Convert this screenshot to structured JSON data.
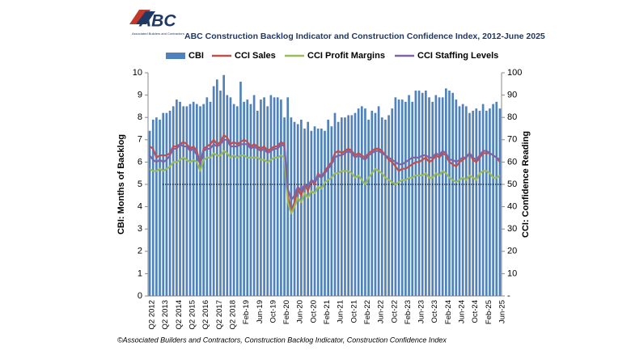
{
  "chart_data": {
    "type": "bar",
    "logo": "ABC",
    "logo_subtitle": "Associated Builders and Contractors",
    "title": "ABC Construction Backlog Indicator and Construction Confidence Index, 2012-June 2025",
    "y_label": "CBI: Months of Backlog",
    "y2_label": "CCI: Confidence Reading",
    "source": "©Associated Builders and Contractors, Construction Backlog Indicator, Construction Confidence Index",
    "categories": [
      "Q2 2012",
      null,
      null,
      null,
      "Q2 2013",
      null,
      null,
      null,
      "Q2 2014",
      null,
      null,
      null,
      "Q2 2015",
      null,
      null,
      null,
      "Q2 2016",
      null,
      null,
      null,
      "Q2 2017",
      null,
      null,
      null,
      "Q2 2018",
      null,
      null,
      null,
      "Feb-19",
      null,
      null,
      null,
      "Jun-19",
      null,
      null,
      null,
      "Oct-19",
      null,
      null,
      null,
      "Feb-20",
      null,
      null,
      null,
      "Jun-20",
      null,
      null,
      null,
      "Oct-20",
      null,
      null,
      null,
      "Feb-21",
      null,
      null,
      null,
      "Jun-21",
      null,
      null,
      null,
      "Oct-21",
      null,
      null,
      null,
      "Feb-22",
      null,
      null,
      null,
      "Jun-22",
      null,
      null,
      null,
      "Oct-22",
      null,
      null,
      null,
      "Feb-23",
      null,
      null,
      null,
      "Jun-23",
      null,
      null,
      null,
      "Oct-23",
      null,
      null,
      null,
      "Feb-24",
      null,
      null,
      null,
      "Jun-24",
      null,
      null,
      null,
      "Oct-24",
      null,
      null,
      null,
      "Feb-25",
      null,
      null,
      null,
      "Jun-25"
    ],
    "series": [
      {
        "name": "CBI",
        "type": "bar",
        "color": "#4f81bd",
        "values": [
          7.4,
          7.9,
          8.0,
          7.9,
          8.2,
          8.2,
          8.3,
          8.5,
          8.8,
          8.7,
          8.5,
          8.5,
          8.6,
          8.7,
          8.6,
          8.5,
          8.6,
          8.9,
          8.7,
          9.4,
          9.7,
          9.2,
          9.9,
          9.0,
          8.9,
          8.6,
          8.5,
          9.6,
          8.7,
          8.8,
          8.6,
          9.0,
          8.3,
          8.8,
          8.9,
          8.5,
          9.0,
          8.9,
          8.9,
          8.8,
          8.0,
          8.9,
          8.0,
          7.8,
          7.7,
          7.9,
          7.5,
          7.8,
          7.4,
          7.6,
          7.5,
          7.5,
          7.4,
          7.9,
          7.6,
          8.2,
          7.8,
          8.0,
          8.0,
          8.1,
          8.1,
          8.2,
          8.4,
          8.5,
          8.4,
          7.9,
          8.3,
          8.2,
          8.5,
          8.0,
          7.9,
          8.1,
          8.4,
          8.9,
          8.8,
          8.8,
          8.7,
          9.0,
          8.7,
          9.2,
          9.2,
          9.1,
          9.2,
          8.9,
          8.7,
          9.0,
          8.9,
          8.9,
          9.3,
          9.2,
          9.1,
          8.8,
          8.5,
          8.6,
          8.5,
          8.2,
          8.3,
          8.4,
          8.3,
          8.6,
          8.3,
          8.4,
          8.6,
          8.7,
          8.4
        ]
      },
      {
        "name": "CCI Sales",
        "type": "line",
        "axis": "y2",
        "color": "#c0504d",
        "values": [
          67,
          66,
          62,
          63,
          63,
          63,
          64,
          67,
          67,
          68,
          69,
          68,
          66,
          67,
          65,
          59,
          66,
          67,
          68,
          70,
          68,
          69,
          72,
          71,
          68,
          69,
          68,
          69,
          70,
          69,
          67,
          68,
          67,
          66,
          67,
          65,
          66,
          67,
          67,
          69,
          68,
          45,
          38,
          42,
          48,
          45,
          50,
          47,
          52,
          50,
          55,
          53,
          56,
          58,
          60,
          64,
          65,
          64,
          65,
          66,
          65,
          63,
          64,
          63,
          62,
          64,
          65,
          66,
          66,
          65,
          63,
          61,
          60,
          58,
          56,
          57,
          57,
          58,
          59,
          60,
          60,
          61,
          62,
          60,
          61,
          63,
          62,
          64,
          63,
          60,
          59,
          58,
          60,
          61,
          62,
          64,
          61,
          60,
          62,
          64,
          64,
          64,
          63,
          62,
          60
        ]
      },
      {
        "name": "CCI Profit Margins",
        "type": "line",
        "axis": "y2",
        "color": "#9bbb59",
        "values": [
          57,
          56,
          56,
          57,
          56,
          57,
          58,
          60,
          60,
          61,
          62,
          61,
          60,
          61,
          60,
          56,
          61,
          62,
          62,
          64,
          63,
          63,
          65,
          64,
          62,
          63,
          62,
          63,
          63,
          62,
          62,
          62,
          62,
          61,
          61,
          60,
          61,
          62,
          62,
          63,
          62,
          42,
          37,
          40,
          44,
          42,
          46,
          44,
          47,
          46,
          49,
          48,
          51,
          52,
          53,
          55,
          55,
          56,
          56,
          56,
          55,
          53,
          54,
          52,
          50,
          53,
          55,
          57,
          56,
          55,
          53,
          52,
          51,
          50,
          51,
          52,
          52,
          53,
          53,
          54,
          54,
          54,
          55,
          53,
          53,
          55,
          54,
          56,
          55,
          53,
          52,
          51,
          52,
          53,
          52,
          54,
          53,
          52,
          55,
          56,
          56,
          55,
          53,
          53,
          54
        ]
      },
      {
        "name": "CCI Staffing Levels",
        "type": "line",
        "axis": "y2",
        "color": "#8064a2",
        "values": [
          63,
          61,
          60,
          61,
          60,
          61,
          63,
          66,
          66,
          68,
          67,
          67,
          65,
          66,
          63,
          59,
          65,
          66,
          66,
          68,
          67,
          68,
          70,
          70,
          67,
          67,
          67,
          68,
          68,
          68,
          66,
          67,
          66,
          65,
          66,
          64,
          65,
          66,
          66,
          68,
          67,
          48,
          43,
          45,
          49,
          47,
          50,
          49,
          52,
          51,
          54,
          53,
          55,
          57,
          59,
          62,
          63,
          63,
          64,
          65,
          64,
          62,
          63,
          62,
          61,
          63,
          64,
          65,
          65,
          64,
          63,
          62,
          61,
          60,
          59,
          59,
          60,
          61,
          62,
          62,
          62,
          63,
          63,
          62,
          62,
          64,
          63,
          65,
          64,
          61,
          61,
          60,
          61,
          62,
          62,
          64,
          62,
          61,
          63,
          65,
          65,
          64,
          63,
          62,
          61
        ]
      }
    ],
    "ylim": [
      0,
      10
    ],
    "yticks": [
      0,
      1,
      2,
      3,
      4,
      5,
      6,
      7,
      8,
      9,
      10
    ],
    "y2lim": [
      0,
      100
    ],
    "y2ticks": [
      {
        "value": 0,
        "label": "-"
      },
      10,
      20,
      30,
      40,
      50,
      60,
      70,
      80,
      90,
      100
    ],
    "reference_line_y2": 50,
    "legend": "top"
  }
}
